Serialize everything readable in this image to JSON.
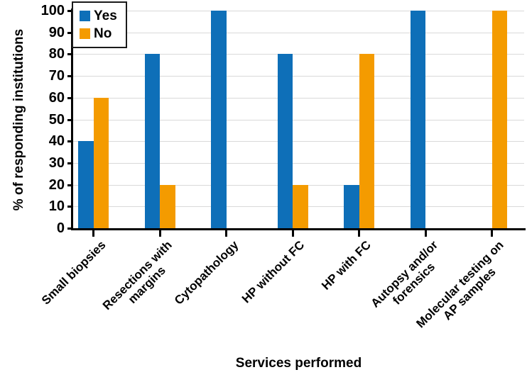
{
  "figure": {
    "background_color": "#ffffff",
    "axis_color": "#000000",
    "grid_color": "#d9d9d9"
  },
  "chart_data": {
    "type": "bar",
    "title": "",
    "xlabel": "Services performed",
    "ylabel": "% of responding institutions",
    "categories": [
      "Small biopsies",
      "Resections with\nmargins",
      "Cytopathology",
      "HP without FC",
      "HP with FC",
      "Autopsy and/or\nforensics",
      "Molecular testing on\nAP samples"
    ],
    "series": [
      {
        "name": "Yes",
        "color": "#0e6fb8",
        "values": [
          40,
          80,
          100,
          80,
          20,
          100,
          0
        ]
      },
      {
        "name": "No",
        "color": "#f49b00",
        "values": [
          60,
          20,
          0,
          20,
          80,
          0,
          100
        ]
      }
    ],
    "ylim": [
      0,
      100
    ],
    "yticks": [
      0,
      10,
      20,
      30,
      40,
      50,
      60,
      70,
      80,
      90,
      100
    ],
    "grid": true,
    "legend_position": "upper left"
  }
}
